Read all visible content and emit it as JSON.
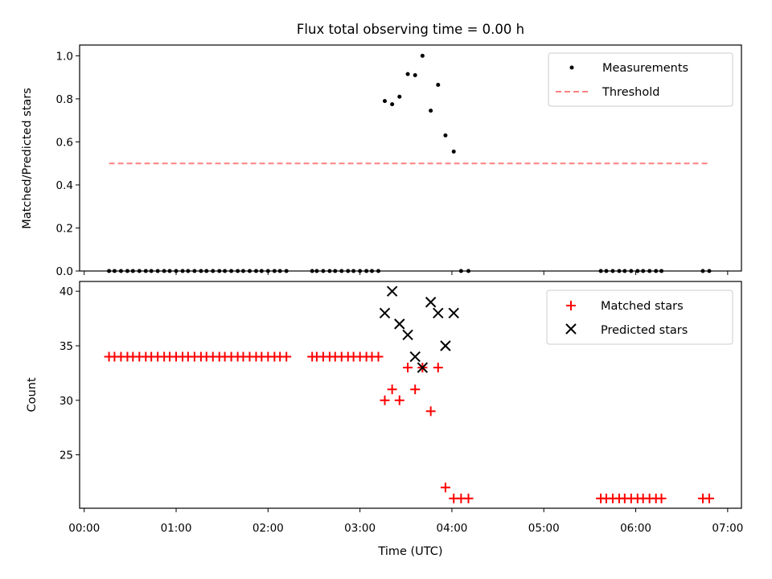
{
  "chart_data": [
    {
      "type": "scatter",
      "title": "Flux total observing time = 0.00 h",
      "ylabel": "Matched/Predicted stars",
      "xlim": [
        -0.05,
        7.15
      ],
      "ylim": [
        0.0,
        1.05
      ],
      "yticks": [
        0.0,
        0.2,
        0.4,
        0.6,
        0.8,
        1.0
      ],
      "ytick_labels": [
        "0.0",
        "0.2",
        "0.4",
        "0.6",
        "0.8",
        "1.0"
      ],
      "legend_position": "top-right",
      "series": [
        {
          "name": "Measurements",
          "marker": "dot",
          "color": "#000000",
          "x": [
            0.27,
            0.33,
            0.4,
            0.47,
            0.53,
            0.6,
            0.67,
            0.73,
            0.8,
            0.87,
            0.93,
            1.0,
            1.07,
            1.13,
            1.2,
            1.27,
            1.33,
            1.4,
            1.47,
            1.53,
            1.6,
            1.67,
            1.73,
            1.8,
            1.87,
            1.93,
            2.0,
            2.07,
            2.13,
            2.2,
            2.48,
            2.53,
            2.6,
            2.67,
            2.73,
            2.8,
            2.87,
            2.93,
            3.0,
            3.07,
            3.13,
            3.2,
            3.27,
            3.35,
            3.43,
            3.52,
            3.6,
            3.68,
            3.77,
            3.85,
            3.93,
            4.02,
            4.1,
            4.18,
            5.62,
            5.68,
            5.75,
            5.82,
            5.88,
            5.95,
            6.02,
            6.08,
            6.15,
            6.22,
            6.28,
            6.73,
            6.8
          ],
          "y": [
            0,
            0,
            0,
            0,
            0,
            0,
            0,
            0,
            0,
            0,
            0,
            0,
            0,
            0,
            0,
            0,
            0,
            0,
            0,
            0,
            0,
            0,
            0,
            0,
            0,
            0,
            0,
            0,
            0,
            0,
            0,
            0,
            0,
            0,
            0,
            0,
            0,
            0,
            0,
            0,
            0,
            0,
            0.79,
            0.775,
            0.81,
            0.915,
            0.91,
            1.0,
            0.745,
            0.865,
            0.63,
            0.555,
            0,
            0,
            0,
            0,
            0,
            0,
            0,
            0,
            0,
            0,
            0,
            0,
            0,
            0,
            0
          ]
        },
        {
          "name": "Threshold",
          "marker": "dashed-line",
          "color": "#ff8080",
          "x": [
            0.27,
            6.8
          ],
          "y": [
            0.5,
            0.5
          ]
        }
      ]
    },
    {
      "type": "scatter",
      "xlabel": "Time (UTC)",
      "ylabel": "Count",
      "xlim": [
        -0.05,
        7.15
      ],
      "ylim": [
        20.1,
        40.9
      ],
      "xticks": [
        0,
        1,
        2,
        3,
        4,
        5,
        6,
        7
      ],
      "xtick_labels": [
        "00:00",
        "01:00",
        "02:00",
        "03:00",
        "04:00",
        "05:00",
        "06:00",
        "07:00"
      ],
      "yticks": [
        25,
        30,
        35,
        40
      ],
      "ytick_labels": [
        "25",
        "30",
        "35",
        "40"
      ],
      "legend_position": "top-right",
      "series": [
        {
          "name": "Matched stars",
          "marker": "plus",
          "color": "#ff0000",
          "x": [
            0.27,
            0.33,
            0.4,
            0.47,
            0.53,
            0.6,
            0.67,
            0.73,
            0.8,
            0.87,
            0.93,
            1.0,
            1.07,
            1.13,
            1.2,
            1.27,
            1.33,
            1.4,
            1.47,
            1.53,
            1.6,
            1.67,
            1.73,
            1.8,
            1.87,
            1.93,
            2.0,
            2.07,
            2.13,
            2.2,
            2.48,
            2.53,
            2.6,
            2.67,
            2.73,
            2.8,
            2.87,
            2.93,
            3.0,
            3.07,
            3.13,
            3.2,
            3.27,
            3.35,
            3.43,
            3.52,
            3.6,
            3.68,
            3.77,
            3.85,
            3.93,
            4.02,
            4.1,
            4.18,
            5.62,
            5.68,
            5.75,
            5.82,
            5.88,
            5.95,
            6.02,
            6.08,
            6.15,
            6.22,
            6.28,
            6.73,
            6.8
          ],
          "y": [
            34,
            34,
            34,
            34,
            34,
            34,
            34,
            34,
            34,
            34,
            34,
            34,
            34,
            34,
            34,
            34,
            34,
            34,
            34,
            34,
            34,
            34,
            34,
            34,
            34,
            34,
            34,
            34,
            34,
            34,
            34,
            34,
            34,
            34,
            34,
            34,
            34,
            34,
            34,
            34,
            34,
            34,
            30,
            31,
            30,
            33,
            31,
            33,
            29,
            33,
            22,
            21,
            21,
            21,
            21,
            21,
            21,
            21,
            21,
            21,
            21,
            21,
            21,
            21,
            21,
            21,
            21
          ]
        },
        {
          "name": "Predicted stars",
          "marker": "x",
          "color": "#000000",
          "x": [
            3.27,
            3.35,
            3.43,
            3.52,
            3.6,
            3.68,
            3.77,
            3.85,
            3.93,
            4.02
          ],
          "y": [
            38,
            40,
            37,
            36,
            34,
            33,
            39,
            38,
            35,
            38
          ]
        }
      ]
    }
  ]
}
